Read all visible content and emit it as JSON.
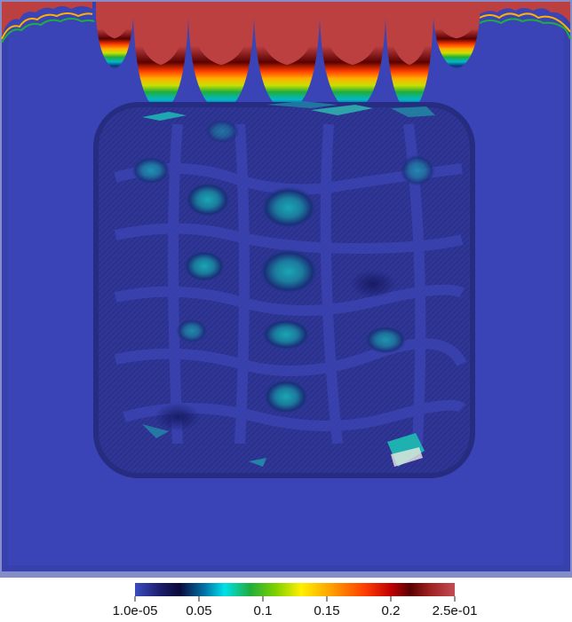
{
  "colorbar": {
    "range": [
      1e-05,
      0.25
    ],
    "ticks": [
      {
        "label": "1.0e-05",
        "value": 1e-05
      },
      {
        "label": "0.05",
        "value": 0.05
      },
      {
        "label": "0.1",
        "value": 0.1
      },
      {
        "label": "0.15",
        "value": 0.15
      },
      {
        "label": "0.2",
        "value": 0.2
      },
      {
        "label": "2.5e-01",
        "value": 0.25
      }
    ],
    "colormap": [
      "#3b4cc0",
      "#1d1e6e",
      "#0a0a3a",
      "#00a0b8",
      "#00e0e8",
      "#2cbf2c",
      "#b8e000",
      "#fff000",
      "#ff9a00",
      "#ff3c00",
      "#c00000",
      "#5a0000",
      "#b8404a"
    ]
  },
  "field": {
    "background_color": "#3b44b6",
    "top_boundary_color": "#bd4041"
  }
}
